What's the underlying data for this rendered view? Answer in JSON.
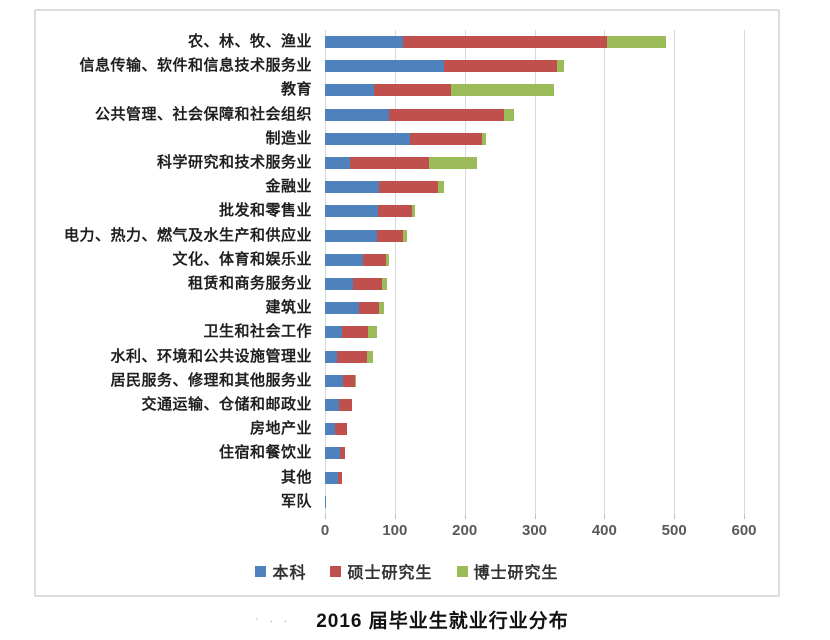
{
  "chart_data": {
    "type": "bar",
    "orientation": "horizontal",
    "stacked": true,
    "title": "2016 届毕业生就业行业分布",
    "categories": [
      "农、林、牧、渔业",
      "信息传输、软件和信息技术服务业",
      "教育",
      "公共管理、社会保障和社会组织",
      "制造业",
      "科学研究和技术服务业",
      "金融业",
      "批发和零售业",
      "电力、热力、燃气及水生产和供应业",
      "文化、体育和娱乐业",
      "租赁和商务服务业",
      "建筑业",
      "卫生和社会工作",
      "水利、环境和公共设施管理业",
      "居民服务、修理和其他服务业",
      "交通运输、仓储和邮政业",
      "房地产业",
      "住宿和餐饮业",
      "其他",
      "军队"
    ],
    "series": [
      {
        "name": "本科",
        "color": "#4F81BD",
        "values": [
          112,
          170,
          70,
          92,
          122,
          36,
          78,
          76,
          74,
          55,
          40,
          48,
          24,
          17,
          26,
          20,
          14,
          21,
          19,
          2
        ]
      },
      {
        "name": "硕士研究生",
        "color": "#C0504D",
        "values": [
          292,
          162,
          110,
          164,
          103,
          113,
          84,
          48,
          38,
          33,
          41,
          30,
          37,
          43,
          17,
          18,
          17,
          8,
          6,
          0
        ]
      },
      {
        "name": "博士研究生",
        "color": "#9BBB59",
        "values": [
          85,
          10,
          148,
          14,
          5,
          68,
          8,
          5,
          6,
          3,
          8,
          6,
          13,
          9,
          1,
          0,
          0,
          0,
          0,
          0
        ]
      }
    ],
    "x_axis": {
      "min": 0,
      "max": 600,
      "ticks": [
        0,
        100,
        200,
        300,
        400,
        500,
        600
      ]
    },
    "legend_position": "bottom",
    "grid": true
  },
  "decor": {
    "dots": "· . ."
  },
  "colors": {
    "gridline": "#d9d9d9",
    "chart_border": "#dcdcdc",
    "axis_label": "#595959",
    "category_label": "#1f1f1f"
  }
}
